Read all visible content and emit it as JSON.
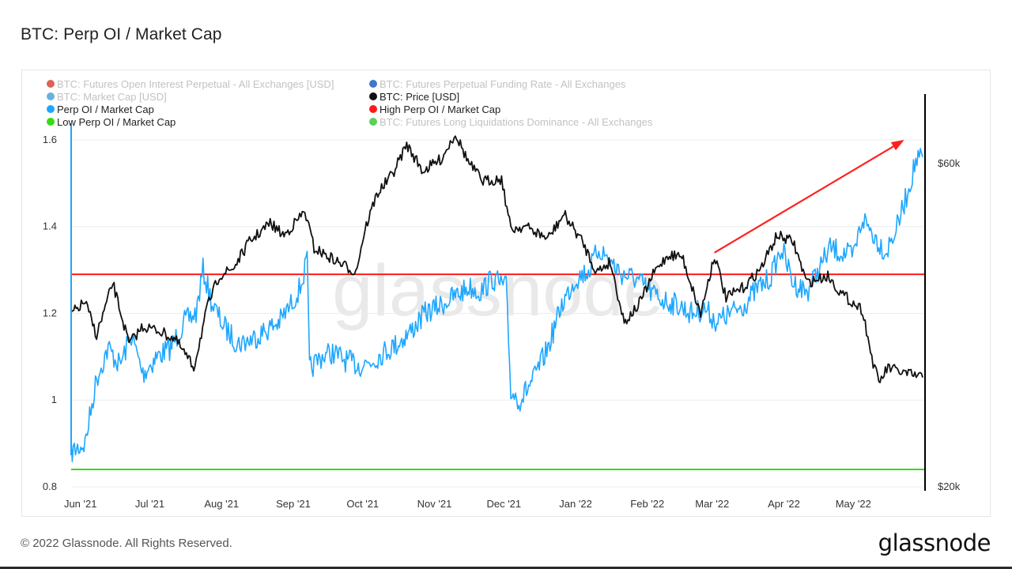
{
  "page": {
    "title": "BTC: Perp OI / Market Cap",
    "copyright": "© 2022 Glassnode. All Rights Reserved.",
    "logo": "glassnode",
    "watermark": "glassnode"
  },
  "chart_data": {
    "type": "line",
    "title": "BTC: Perp OI / Market Cap",
    "x_tick_labels": [
      "Jun '21",
      "Jul '21",
      "Aug '21",
      "Sep '21",
      "Oct '21",
      "Nov '21",
      "Dec '21",
      "Jan '22",
      "Feb '22",
      "Mar '22",
      "Apr '22",
      "May '22"
    ],
    "x_range": [
      "2021-05-28",
      "2022-06-01"
    ],
    "y_left": {
      "ticks": [
        "0.8",
        "1",
        "1.2",
        "1.4",
        "1.6"
      ],
      "range": [
        0.8,
        1.62
      ]
    },
    "y_right": {
      "ticks": [
        "$20k",
        "$60k"
      ],
      "scale": "log",
      "range": [
        20000,
        67000
      ]
    },
    "legend": [
      {
        "label": "BTC: Futures Open Interest Perpetual - All Exchanges [USD]",
        "color": "#d7463a",
        "active": false
      },
      {
        "label": "BTC: Futures Perpetual Funding Rate - All Exchanges",
        "color": "#1f5fc4",
        "active": false
      },
      {
        "label": "BTC: Market Cap [USD]",
        "color": "#4fa3d8",
        "active": false
      },
      {
        "label": "BTC: Price [USD]",
        "color": "#111111",
        "active": true
      },
      {
        "label": "Perp OI / Market Cap",
        "color": "#1ea7ff",
        "active": true
      },
      {
        "label": "High Perp OI / Market Cap",
        "color": "#ff1a1a",
        "active": true
      },
      {
        "label": "Low Perp OI / Market Cap",
        "color": "#33dd11",
        "active": true
      },
      {
        "label": "BTC: Futures Long Liquidations Dominance - All Exchanges",
        "color": "#3cc93c",
        "active": false
      }
    ],
    "legend_position": "top-left",
    "grid": "horizontal",
    "thresholds": [
      {
        "name": "High Perp OI / Market Cap",
        "value": 1.29,
        "color": "#ff1a1a"
      },
      {
        "name": "Low Perp OI / Market Cap",
        "value": 0.84,
        "color": "#33dd11"
      }
    ],
    "series": [
      {
        "name": "Perp OI / Market Cap",
        "axis": "left",
        "color": "#1ea7ff",
        "points": [
          [
            "2021-05-28",
            0.88
          ],
          [
            "2021-06-03",
            0.9
          ],
          [
            "2021-06-08",
            1.05
          ],
          [
            "2021-06-13",
            1.12
          ],
          [
            "2021-06-18",
            1.08
          ],
          [
            "2021-06-23",
            1.15
          ],
          [
            "2021-06-28",
            1.06
          ],
          [
            "2021-07-04",
            1.1
          ],
          [
            "2021-07-10",
            1.12
          ],
          [
            "2021-07-16",
            1.18
          ],
          [
            "2021-07-21",
            1.2
          ],
          [
            "2021-07-24",
            1.3
          ],
          [
            "2021-07-28",
            1.22
          ],
          [
            "2021-08-02",
            1.17
          ],
          [
            "2021-08-08",
            1.13
          ],
          [
            "2021-08-14",
            1.14
          ],
          [
            "2021-08-20",
            1.16
          ],
          [
            "2021-08-26",
            1.18
          ],
          [
            "2021-08-31",
            1.22
          ],
          [
            "2021-09-04",
            1.26
          ],
          [
            "2021-09-07",
            1.32
          ],
          [
            "2021-09-08",
            1.07
          ],
          [
            "2021-09-13",
            1.1
          ],
          [
            "2021-09-18",
            1.11
          ],
          [
            "2021-09-24",
            1.09
          ],
          [
            "2021-09-30",
            1.08
          ],
          [
            "2021-10-05",
            1.09
          ],
          [
            "2021-10-10",
            1.11
          ],
          [
            "2021-10-16",
            1.13
          ],
          [
            "2021-10-22",
            1.16
          ],
          [
            "2021-10-28",
            1.2
          ],
          [
            "2021-11-04",
            1.22
          ],
          [
            "2021-11-10",
            1.24
          ],
          [
            "2021-11-16",
            1.26
          ],
          [
            "2021-11-21",
            1.25
          ],
          [
            "2021-11-26",
            1.28
          ],
          [
            "2021-12-02",
            1.26
          ],
          [
            "2021-12-04",
            1.02
          ],
          [
            "2021-12-08",
            1.0
          ],
          [
            "2021-12-14",
            1.05
          ],
          [
            "2021-12-20",
            1.12
          ],
          [
            "2021-12-26",
            1.22
          ],
          [
            "2022-01-01",
            1.28
          ],
          [
            "2022-01-07",
            1.3
          ],
          [
            "2022-01-11",
            1.35
          ],
          [
            "2022-01-16",
            1.32
          ],
          [
            "2022-01-21",
            1.29
          ],
          [
            "2022-01-27",
            1.28
          ],
          [
            "2022-02-02",
            1.25
          ],
          [
            "2022-02-08",
            1.23
          ],
          [
            "2022-02-14",
            1.22
          ],
          [
            "2022-02-20",
            1.2
          ],
          [
            "2022-02-26",
            1.21
          ],
          [
            "2022-03-03",
            1.18
          ],
          [
            "2022-03-09",
            1.2
          ],
          [
            "2022-03-15",
            1.22
          ],
          [
            "2022-03-21",
            1.26
          ],
          [
            "2022-03-26",
            1.28
          ],
          [
            "2022-03-31",
            1.35
          ],
          [
            "2022-04-05",
            1.27
          ],
          [
            "2022-04-11",
            1.25
          ],
          [
            "2022-04-16",
            1.3
          ],
          [
            "2022-04-21",
            1.35
          ],
          [
            "2022-04-26",
            1.34
          ],
          [
            "2022-05-01",
            1.33
          ],
          [
            "2022-05-05",
            1.42
          ],
          [
            "2022-05-10",
            1.38
          ],
          [
            "2022-05-15",
            1.34
          ],
          [
            "2022-05-20",
            1.4
          ],
          [
            "2022-05-24",
            1.47
          ],
          [
            "2022-05-28",
            1.55
          ],
          [
            "2022-05-31",
            1.56
          ]
        ]
      },
      {
        "name": "BTC: Price [USD]",
        "axis": "right",
        "color": "#111111",
        "points": [
          [
            "2021-05-28",
            36000
          ],
          [
            "2021-06-03",
            37500
          ],
          [
            "2021-06-08",
            33500
          ],
          [
            "2021-06-15",
            40000
          ],
          [
            "2021-06-22",
            32500
          ],
          [
            "2021-06-28",
            34500
          ],
          [
            "2021-07-05",
            34000
          ],
          [
            "2021-07-12",
            33000
          ],
          [
            "2021-07-20",
            30000
          ],
          [
            "2021-07-26",
            37000
          ],
          [
            "2021-07-31",
            41000
          ],
          [
            "2021-08-06",
            42000
          ],
          [
            "2021-08-13",
            46000
          ],
          [
            "2021-08-22",
            49000
          ],
          [
            "2021-08-28",
            47000
          ],
          [
            "2021-09-06",
            51000
          ],
          [
            "2021-09-10",
            45000
          ],
          [
            "2021-09-20",
            43000
          ],
          [
            "2021-09-28",
            41500
          ],
          [
            "2021-10-02",
            48000
          ],
          [
            "2021-10-07",
            54000
          ],
          [
            "2021-10-14",
            58000
          ],
          [
            "2021-10-20",
            64000
          ],
          [
            "2021-10-27",
            58500
          ],
          [
            "2021-11-04",
            61000
          ],
          [
            "2021-11-10",
            66500
          ],
          [
            "2021-11-16",
            60000
          ],
          [
            "2021-11-22",
            56500
          ],
          [
            "2021-11-30",
            57000
          ],
          [
            "2021-12-04",
            48000
          ],
          [
            "2021-12-10",
            48500
          ],
          [
            "2021-12-20",
            46500
          ],
          [
            "2021-12-27",
            50500
          ],
          [
            "2022-01-04",
            46000
          ],
          [
            "2022-01-10",
            41500
          ],
          [
            "2022-01-16",
            43000
          ],
          [
            "2022-01-22",
            35000
          ],
          [
            "2022-01-28",
            37000
          ],
          [
            "2022-02-04",
            41500
          ],
          [
            "2022-02-10",
            44000
          ],
          [
            "2022-02-16",
            43800
          ],
          [
            "2022-02-24",
            36000
          ],
          [
            "2022-03-02",
            44000
          ],
          [
            "2022-03-07",
            38000
          ],
          [
            "2022-03-15",
            39500
          ],
          [
            "2022-03-22",
            42000
          ],
          [
            "2022-03-29",
            47000
          ],
          [
            "2022-04-05",
            46000
          ],
          [
            "2022-04-11",
            40000
          ],
          [
            "2022-04-20",
            41000
          ],
          [
            "2022-04-26",
            38500
          ],
          [
            "2022-05-05",
            36500
          ],
          [
            "2022-05-09",
            31000
          ],
          [
            "2022-05-12",
            28500
          ],
          [
            "2022-05-16",
            30000
          ],
          [
            "2022-05-22",
            29500
          ],
          [
            "2022-05-31",
            29000
          ]
        ]
      }
    ],
    "annotations": [
      {
        "type": "arrow",
        "color": "#ff2020",
        "from": [
          "2022-03-02",
          1.34
        ],
        "to": [
          "2022-05-23",
          1.6
        ]
      }
    ],
    "current_marker": {
      "date": "2022-06-01",
      "color": "#000000"
    }
  }
}
